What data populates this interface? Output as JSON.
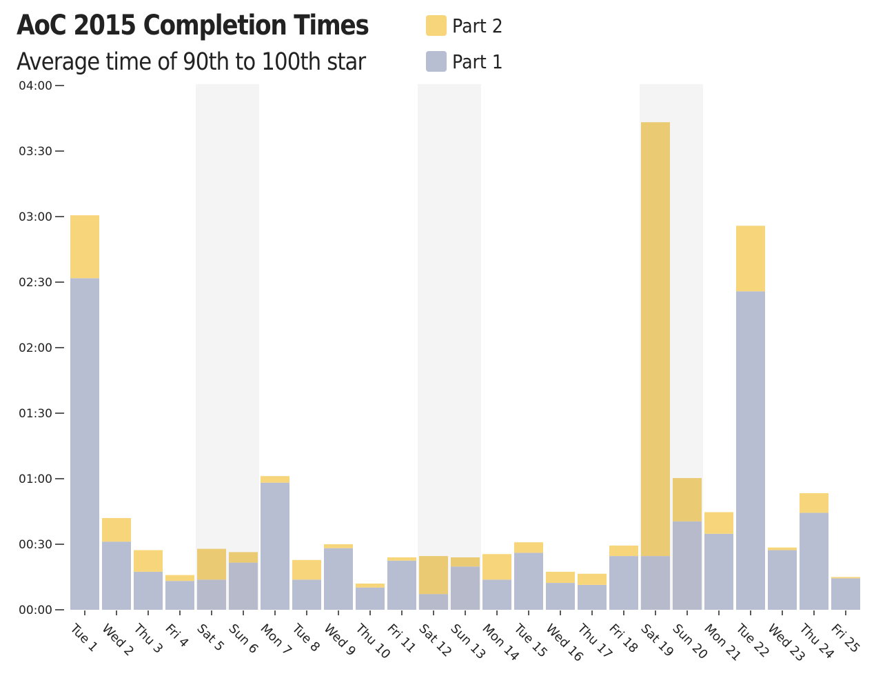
{
  "chart_data": {
    "type": "bar",
    "stacked": true,
    "title": "AoC 2015 Completion Times",
    "subtitle": "Average time of 90th to 100th star",
    "categories": [
      "Tue 1",
      "Wed 2",
      "Thu 3",
      "Fri 4",
      "Sat 5",
      "Sun 6",
      "Mon 7",
      "Tue 8",
      "Wed 9",
      "Thu 10",
      "Fri 11",
      "Sat 12",
      "Sun 13",
      "Mon 14",
      "Tue 15",
      "Wed 16",
      "Thu 17",
      "Fri 18",
      "Sat 19",
      "Sun 20",
      "Mon 21",
      "Tue 22",
      "Wed 23",
      "Thu 24",
      "Fri 25"
    ],
    "series": [
      {
        "name": "Part 1",
        "color": "#b8bed1",
        "values": [
          2.53,
          0.52,
          0.29,
          0.22,
          0.23,
          0.36,
          0.97,
          0.23,
          0.47,
          0.17,
          0.375,
          0.12,
          0.33,
          0.23,
          0.435,
          0.205,
          0.19,
          0.41,
          0.41,
          0.675,
          0.58,
          2.43,
          0.455,
          0.74,
          0.24
        ]
      },
      {
        "name": "Part 2",
        "color": "#f7d57a",
        "values": [
          0.48,
          0.18,
          0.165,
          0.045,
          0.235,
          0.08,
          0.05,
          0.15,
          0.03,
          0.03,
          0.025,
          0.29,
          0.07,
          0.195,
          0.08,
          0.085,
          0.085,
          0.08,
          3.31,
          0.33,
          0.165,
          0.5,
          0.02,
          0.15,
          0.01
        ]
      }
    ],
    "weekend_indices": [
      4,
      5,
      11,
      12,
      18,
      19
    ],
    "weekend_shade_color": "#f4f4f4",
    "yaxis": {
      "ylim": [
        0,
        4
      ],
      "ticks": [
        0,
        0.5,
        1,
        1.5,
        2,
        2.5,
        3,
        3.5,
        4
      ],
      "tick_labels": [
        "00:00",
        "00:30",
        "01:00",
        "01:30",
        "02:00",
        "02:30",
        "03:00",
        "03:30",
        "04:00"
      ]
    },
    "xlabel": "",
    "ylabel": "",
    "legend": {
      "position": "top",
      "entries": [
        "Part 2",
        "Part 1"
      ]
    }
  }
}
